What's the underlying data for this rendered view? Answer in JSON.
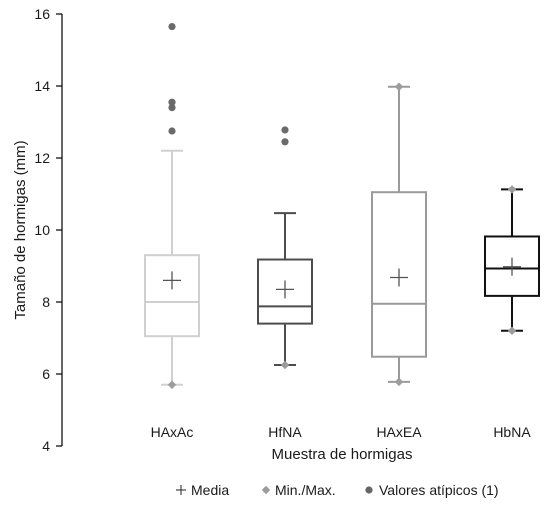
{
  "chart_data": {
    "type": "boxplot",
    "xlabel": "Muestra de hormigas",
    "ylabel": "Tamaño de hormigas (mm)",
    "ylim": [
      4,
      16
    ],
    "yticks": [
      4,
      6,
      8,
      10,
      12,
      14,
      16
    ],
    "grid": false,
    "legend_position": "bottom",
    "legend": {
      "mean": "Media",
      "minmax": "Min./Max.",
      "outliers": "Valores atípicos (1)"
    },
    "groups": [
      {
        "category": "HAxAc",
        "color": "#d0d0d0",
        "min": 5.7,
        "q1": 7.05,
        "median": 8.0,
        "q3": 9.3,
        "whisker_high": 12.2,
        "max": 15.65,
        "mean": 8.6,
        "outliers": [
          12.75,
          13.4,
          13.55,
          15.65
        ]
      },
      {
        "category": "HfNA",
        "color": "#4d4d4d",
        "min": 6.25,
        "q1": 7.4,
        "median": 7.88,
        "q3": 9.18,
        "whisker_high": 10.47,
        "max": 12.78,
        "mean": 8.35,
        "outliers": [
          12.45,
          12.78
        ]
      },
      {
        "category": "HAxEA",
        "color": "#9a9a9a",
        "min": 5.78,
        "q1": 6.48,
        "median": 7.95,
        "q3": 11.05,
        "whisker_high": 13.98,
        "max": 13.98,
        "mean": 8.68,
        "outliers": []
      },
      {
        "category": "HbNA",
        "color": "#111111",
        "min": 7.2,
        "q1": 8.17,
        "median": 8.93,
        "q3": 9.82,
        "whisker_high": 11.13,
        "max": 11.13,
        "mean": 8.98,
        "outliers": []
      }
    ]
  }
}
